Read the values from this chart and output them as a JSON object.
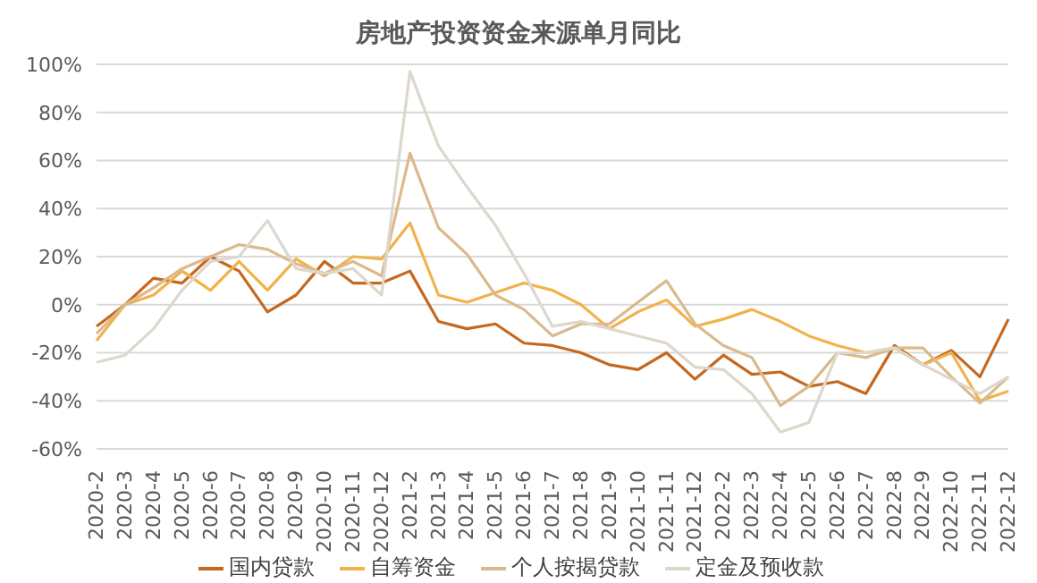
{
  "chart_data": {
    "type": "line",
    "title": "房地产投资资金来源单月同比",
    "categories": [
      "2020-2",
      "2020-3",
      "2020-4",
      "2020-5",
      "2020-6",
      "2020-7",
      "2020-8",
      "2020-9",
      "2020-10",
      "2020-11",
      "2020-12",
      "2021-2",
      "2021-3",
      "2021-4",
      "2021-5",
      "2021-6",
      "2021-7",
      "2021-8",
      "2021-9",
      "2021-10",
      "2021-11",
      "2021-12",
      "2022-2",
      "2022-3",
      "2022-4",
      "2022-5",
      "2022-6",
      "2022-7",
      "2022-8",
      "2022-9",
      "2022-10",
      "2022-11",
      "2022-12"
    ],
    "series": [
      {
        "name": "国内贷款",
        "color": "#c5681f",
        "values": [
          -9,
          0,
          11,
          9,
          20,
          14,
          -3,
          4,
          18,
          9,
          9,
          14,
          -7,
          -10,
          -8,
          -16,
          -17,
          -20,
          -25,
          -27,
          -20,
          -31,
          -21,
          -29,
          -28,
          -34,
          -32,
          -37,
          -17,
          -25,
          -19,
          -30,
          -6
        ]
      },
      {
        "name": "自筹资金",
        "color": "#f2b24a",
        "values": [
          -15,
          0,
          4,
          14,
          6,
          18,
          6,
          19,
          12,
          20,
          19,
          34,
          4,
          1,
          5,
          9,
          6,
          0,
          -10,
          -3,
          2,
          -9,
          -6,
          -2,
          -7,
          -13,
          -17,
          -20,
          -18,
          -25,
          -20,
          -40,
          -36
        ]
      },
      {
        "name": "个人按揭贷款",
        "color": "#dcb98c",
        "values": [
          -12,
          0,
          7,
          15,
          20,
          25,
          23,
          17,
          13,
          18,
          12,
          63,
          32,
          21,
          4,
          -2,
          -13,
          -8,
          -8,
          1,
          10,
          -8,
          -17,
          -22,
          -42,
          -34,
          -20,
          -22,
          -18,
          -18,
          -30,
          -41,
          -30
        ]
      },
      {
        "name": "定金及预收款",
        "color": "#ddd7cd",
        "values": [
          -24,
          -21,
          -10,
          6,
          18,
          20,
          35,
          15,
          13,
          15,
          4,
          97,
          66,
          49,
          33,
          13,
          -9,
          -7,
          -10,
          -13,
          -16,
          -26,
          -27,
          -37,
          -53,
          -49,
          -20,
          -20,
          -18,
          -25,
          -31,
          -37,
          -30
        ]
      }
    ],
    "ylim": [
      -60,
      100
    ],
    "yticks": [
      {
        "value": -60,
        "label": "-60%"
      },
      {
        "value": -40,
        "label": "-40%"
      },
      {
        "value": -20,
        "label": "-20%"
      },
      {
        "value": 0,
        "label": "0%"
      },
      {
        "value": 20,
        "label": "20%"
      },
      {
        "value": 40,
        "label": "40%"
      },
      {
        "value": 60,
        "label": "60%"
      },
      {
        "value": 80,
        "label": "80%"
      },
      {
        "value": 100,
        "label": "100%"
      }
    ],
    "grid": "y",
    "legend": "bottom",
    "marker": "none",
    "line_style": "solid"
  }
}
